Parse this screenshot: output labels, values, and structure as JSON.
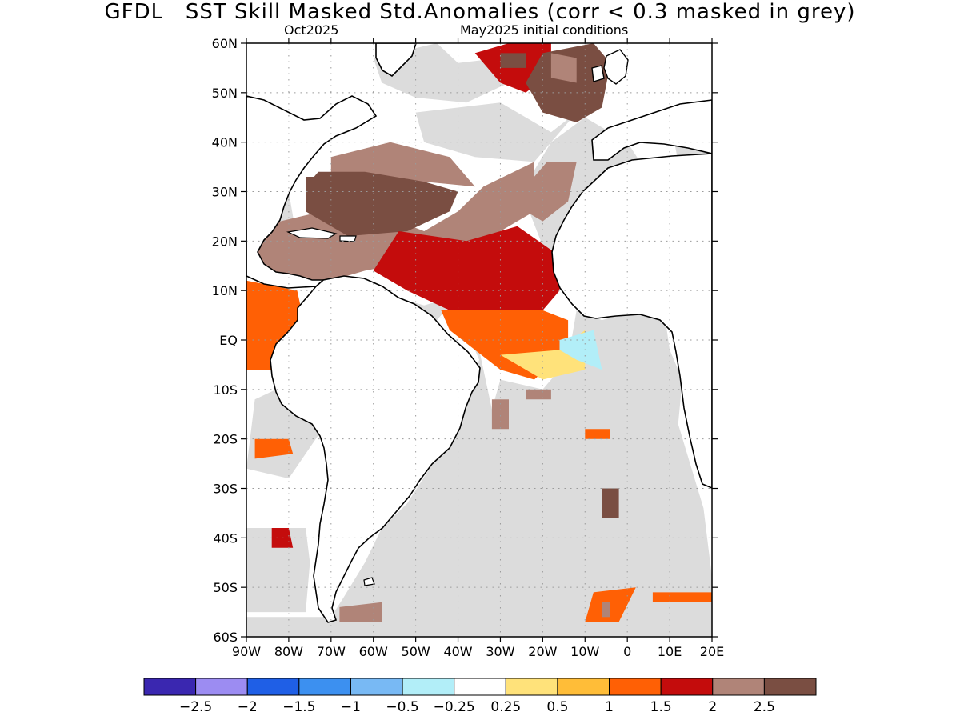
{
  "title": "GFDL   SST Skill Masked Std.Anomalies (corr < 0.3 masked in grey)",
  "subtitle_left": "Oct2025",
  "subtitle_right": "May2025 initial conditions",
  "colors": {
    "land": "#ffffff",
    "masked": "#dcdcdc",
    "coast": "#000000",
    "grid": "#9a9a9a"
  },
  "chart_data": {
    "type": "heatmap",
    "lat_labels": [
      "60N",
      "50N",
      "40N",
      "30N",
      "20N",
      "10N",
      "EQ",
      "10S",
      "20S",
      "30S",
      "40S",
      "50S",
      "60S"
    ],
    "lat_values": [
      60,
      50,
      40,
      30,
      20,
      10,
      0,
      -10,
      -20,
      -30,
      -40,
      -50,
      -60
    ],
    "lon_labels": [
      "90W",
      "80W",
      "70W",
      "60W",
      "50W",
      "40W",
      "30W",
      "20W",
      "10W",
      "0",
      "10E",
      "20E"
    ],
    "lon_values": [
      -90,
      -80,
      -70,
      -60,
      -50,
      -40,
      -30,
      -20,
      -10,
      0,
      10,
      20
    ],
    "xlim": [
      -90,
      20
    ],
    "ylim": [
      -60,
      60
    ],
    "colorbar": {
      "boundaries": [
        "−2.5",
        "−2",
        "−1.5",
        "−1",
        "−0.5",
        "−0.25",
        "0.25",
        "0.5",
        "1",
        "1.5",
        "2",
        "2.5"
      ],
      "colors": [
        "#3a27b0",
        "#9c8cf2",
        "#1f5fe6",
        "#3c90f0",
        "#78b9f4",
        "#b2eef8",
        "#ffffff",
        "#ffe27a",
        "#ffbd38",
        "#ff6005",
        "#c40c0c",
        "#b08478",
        "#7a4e42"
      ]
    },
    "masked_regions": [
      [
        [
          -60,
          57
        ],
        [
          -45,
          60
        ],
        [
          -40,
          56
        ],
        [
          -30,
          57
        ],
        [
          -25,
          60
        ],
        [
          -28,
          52
        ],
        [
          -38,
          48
        ],
        [
          -50,
          49
        ],
        [
          -58,
          52
        ]
      ],
      [
        [
          -50,
          46
        ],
        [
          -30,
          48
        ],
        [
          -18,
          42
        ],
        [
          -12,
          46
        ],
        [
          -22,
          36
        ],
        [
          -36,
          37
        ],
        [
          -48,
          40
        ]
      ],
      [
        [
          -10,
          45
        ],
        [
          0,
          40
        ],
        [
          3,
          36
        ],
        [
          -3,
          30
        ],
        [
          -12,
          28
        ],
        [
          -10,
          22
        ],
        [
          -15,
          14
        ],
        [
          -20,
          19
        ],
        [
          -25,
          30
        ],
        [
          -18,
          40
        ]
      ],
      [
        [
          -32,
          21
        ],
        [
          -25,
          21
        ],
        [
          -24,
          16
        ],
        [
          -32,
          16
        ]
      ],
      [
        [
          -76,
          9
        ],
        [
          -60,
          10
        ],
        [
          -48,
          7
        ],
        [
          -40,
          9
        ],
        [
          -44,
          5
        ],
        [
          -48,
          1
        ],
        [
          -52,
          -2
        ],
        [
          -52,
          6
        ],
        [
          -65,
          8
        ]
      ],
      [
        [
          -45,
          5
        ],
        [
          -38,
          2
        ],
        [
          -35,
          -4
        ],
        [
          -38,
          -10
        ],
        [
          -41,
          -18
        ],
        [
          -46,
          -25
        ],
        [
          -52,
          -33
        ],
        [
          -58,
          -38
        ],
        [
          -62,
          -45
        ],
        [
          -67,
          -52
        ],
        [
          -70,
          -56
        ],
        [
          -90,
          -56
        ],
        [
          -90,
          -60
        ],
        [
          20,
          -60
        ],
        [
          20,
          -48
        ],
        [
          18,
          -34
        ],
        [
          12,
          -17
        ],
        [
          13,
          -8
        ],
        [
          10,
          -2
        ],
        [
          9,
          4
        ],
        [
          2,
          6
        ],
        [
          -6,
          4
        ],
        [
          -12,
          6
        ],
        [
          -14,
          -4
        ],
        [
          -20,
          -10
        ],
        [
          -30,
          -8
        ],
        [
          -32,
          -14
        ],
        [
          -35,
          -2
        ],
        [
          -40,
          3
        ]
      ],
      [
        [
          -90,
          -38
        ],
        [
          -76,
          -38
        ],
        [
          -75,
          -45
        ],
        [
          -76,
          -55
        ],
        [
          -90,
          -55
        ]
      ],
      [
        [
          -88,
          -12
        ],
        [
          -78,
          -8
        ],
        [
          -72,
          -18
        ],
        [
          -80,
          -28
        ],
        [
          -90,
          -26
        ]
      ],
      [
        [
          10,
          45
        ],
        [
          20,
          45
        ],
        [
          20,
          35
        ],
        [
          12,
          36
        ]
      ],
      [
        [
          -84,
          30
        ],
        [
          -80,
          30
        ],
        [
          -78,
          20
        ],
        [
          -84,
          20
        ]
      ]
    ],
    "positive_regions": [
      {
        "level": 2,
        "poly": [
          [
            -90,
            26
          ],
          [
            -82,
            24
          ],
          [
            -72,
            26
          ],
          [
            -60,
            26
          ],
          [
            -48,
            22
          ],
          [
            -40,
            26
          ],
          [
            -34,
            31
          ],
          [
            -22,
            36
          ],
          [
            -22,
            26
          ],
          [
            -30,
            22
          ],
          [
            -38,
            19
          ],
          [
            -48,
            19
          ],
          [
            -56,
            15
          ],
          [
            -62,
            14
          ],
          [
            -70,
            12
          ],
          [
            -82,
            12
          ],
          [
            -90,
            16
          ]
        ]
      },
      {
        "level": 2,
        "poly": [
          [
            -70,
            37
          ],
          [
            -56,
            40
          ],
          [
            -42,
            37
          ],
          [
            -36,
            31
          ],
          [
            -48,
            32
          ],
          [
            -62,
            33
          ],
          [
            -70,
            33
          ]
        ]
      },
      {
        "level": 2,
        "poly": [
          [
            -19,
            36
          ],
          [
            -12,
            36
          ],
          [
            -14,
            28
          ],
          [
            -20,
            24
          ],
          [
            -24,
            26
          ],
          [
            -23,
            32
          ]
        ]
      },
      {
        "level": 2.5,
        "poly": [
          [
            -73,
            34
          ],
          [
            -62,
            34
          ],
          [
            -48,
            32
          ],
          [
            -40,
            30
          ],
          [
            -42,
            26
          ],
          [
            -52,
            22
          ],
          [
            -66,
            21
          ],
          [
            -76,
            26
          ],
          [
            -76,
            31
          ]
        ]
      },
      {
        "level": 3,
        "poly": [
          [
            -76,
            33
          ],
          [
            -70,
            33
          ],
          [
            -72,
            30
          ],
          [
            -76,
            30
          ]
        ]
      },
      {
        "level": 3,
        "poly": [
          [
            -58,
            32
          ],
          [
            -52,
            32
          ],
          [
            -52,
            28
          ],
          [
            -58,
            28
          ]
        ]
      },
      {
        "level": 1.5,
        "poly": [
          [
            -54,
            22
          ],
          [
            -38,
            20
          ],
          [
            -26,
            23
          ],
          [
            -16,
            17
          ],
          [
            -16,
            10
          ],
          [
            -20,
            6
          ],
          [
            -30,
            6
          ],
          [
            -42,
            6
          ],
          [
            -52,
            10
          ],
          [
            -60,
            14
          ]
        ]
      },
      {
        "level": 1,
        "poly": [
          [
            -44,
            6
          ],
          [
            -34,
            6
          ],
          [
            -20,
            6
          ],
          [
            -14,
            4
          ],
          [
            -14,
            -2
          ],
          [
            -22,
            -8
          ],
          [
            -30,
            -6
          ],
          [
            -36,
            -2
          ],
          [
            -42,
            2
          ]
        ]
      },
      {
        "level": 0.25,
        "poly": [
          [
            -30,
            -3
          ],
          [
            -16,
            -2
          ],
          [
            -10,
            2
          ],
          [
            -10,
            -6
          ],
          [
            -20,
            -8
          ]
        ]
      },
      {
        "level": -0.3,
        "poly": [
          [
            -16,
            0
          ],
          [
            -8,
            2
          ],
          [
            -6,
            -6
          ],
          [
            -12,
            -4
          ],
          [
            -16,
            -2
          ]
        ]
      },
      {
        "level": 1.5,
        "poly": [
          [
            -36,
            58
          ],
          [
            -28,
            60
          ],
          [
            -18,
            60
          ],
          [
            -18,
            54
          ],
          [
            -24,
            50
          ],
          [
            -30,
            52
          ]
        ]
      },
      {
        "level": 3,
        "poly": [
          [
            -30,
            58
          ],
          [
            -24,
            58
          ],
          [
            -24,
            55
          ],
          [
            -30,
            55
          ]
        ]
      },
      {
        "level": 2.5,
        "poly": [
          [
            -20,
            58
          ],
          [
            -8,
            60
          ],
          [
            -4,
            56
          ],
          [
            -6,
            47
          ],
          [
            -12,
            44
          ],
          [
            -20,
            46
          ],
          [
            -24,
            52
          ]
        ]
      },
      {
        "level": 2,
        "poly": [
          [
            -18,
            58
          ],
          [
            -12,
            57
          ],
          [
            -12,
            52
          ],
          [
            -18,
            53
          ]
        ]
      },
      {
        "level": 1,
        "poly": [
          [
            -90,
            12
          ],
          [
            -78,
            10
          ],
          [
            -76,
            2
          ],
          [
            -80,
            -6
          ],
          [
            -90,
            -6
          ]
        ]
      },
      {
        "level": 1,
        "poly": [
          [
            -88,
            -20
          ],
          [
            -80,
            -20
          ],
          [
            -79,
            -23
          ],
          [
            -88,
            -24
          ]
        ]
      },
      {
        "level": 1.5,
        "poly": [
          [
            -84,
            -38
          ],
          [
            -80,
            -38
          ],
          [
            -79,
            -42
          ],
          [
            -84,
            -42
          ]
        ]
      },
      {
        "level": 2,
        "poly": [
          [
            -32,
            -12
          ],
          [
            -28,
            -12
          ],
          [
            -28,
            -18
          ],
          [
            -32,
            -18
          ]
        ]
      },
      {
        "level": 1,
        "poly": [
          [
            -8,
            -51
          ],
          [
            2,
            -50
          ],
          [
            -2,
            -57
          ],
          [
            -10,
            -57
          ]
        ]
      },
      {
        "level": 2,
        "poly": [
          [
            -6,
            -53
          ],
          [
            -4,
            -53
          ],
          [
            -4,
            -56
          ],
          [
            -6,
            -56
          ]
        ]
      },
      {
        "level": 1,
        "poly": [
          [
            6,
            -51
          ],
          [
            20,
            -51
          ],
          [
            20,
            -53
          ],
          [
            6,
            -53
          ]
        ]
      },
      {
        "level": 2,
        "poly": [
          [
            -24,
            -10
          ],
          [
            -18,
            -10
          ],
          [
            -18,
            -12
          ],
          [
            -24,
            -12
          ]
        ]
      },
      {
        "level": 2.5,
        "poly": [
          [
            -6,
            -30
          ],
          [
            -2,
            -30
          ],
          [
            -2,
            -36
          ],
          [
            -6,
            -36
          ]
        ]
      },
      {
        "level": 2,
        "poly": [
          [
            -68,
            -54
          ],
          [
            -58,
            -53
          ],
          [
            -58,
            -57
          ],
          [
            -68,
            -57
          ]
        ]
      },
      {
        "level": 1,
        "poly": [
          [
            -10,
            -18
          ],
          [
            -4,
            -18
          ],
          [
            -4,
            -20
          ],
          [
            -10,
            -20
          ]
        ]
      }
    ]
  }
}
